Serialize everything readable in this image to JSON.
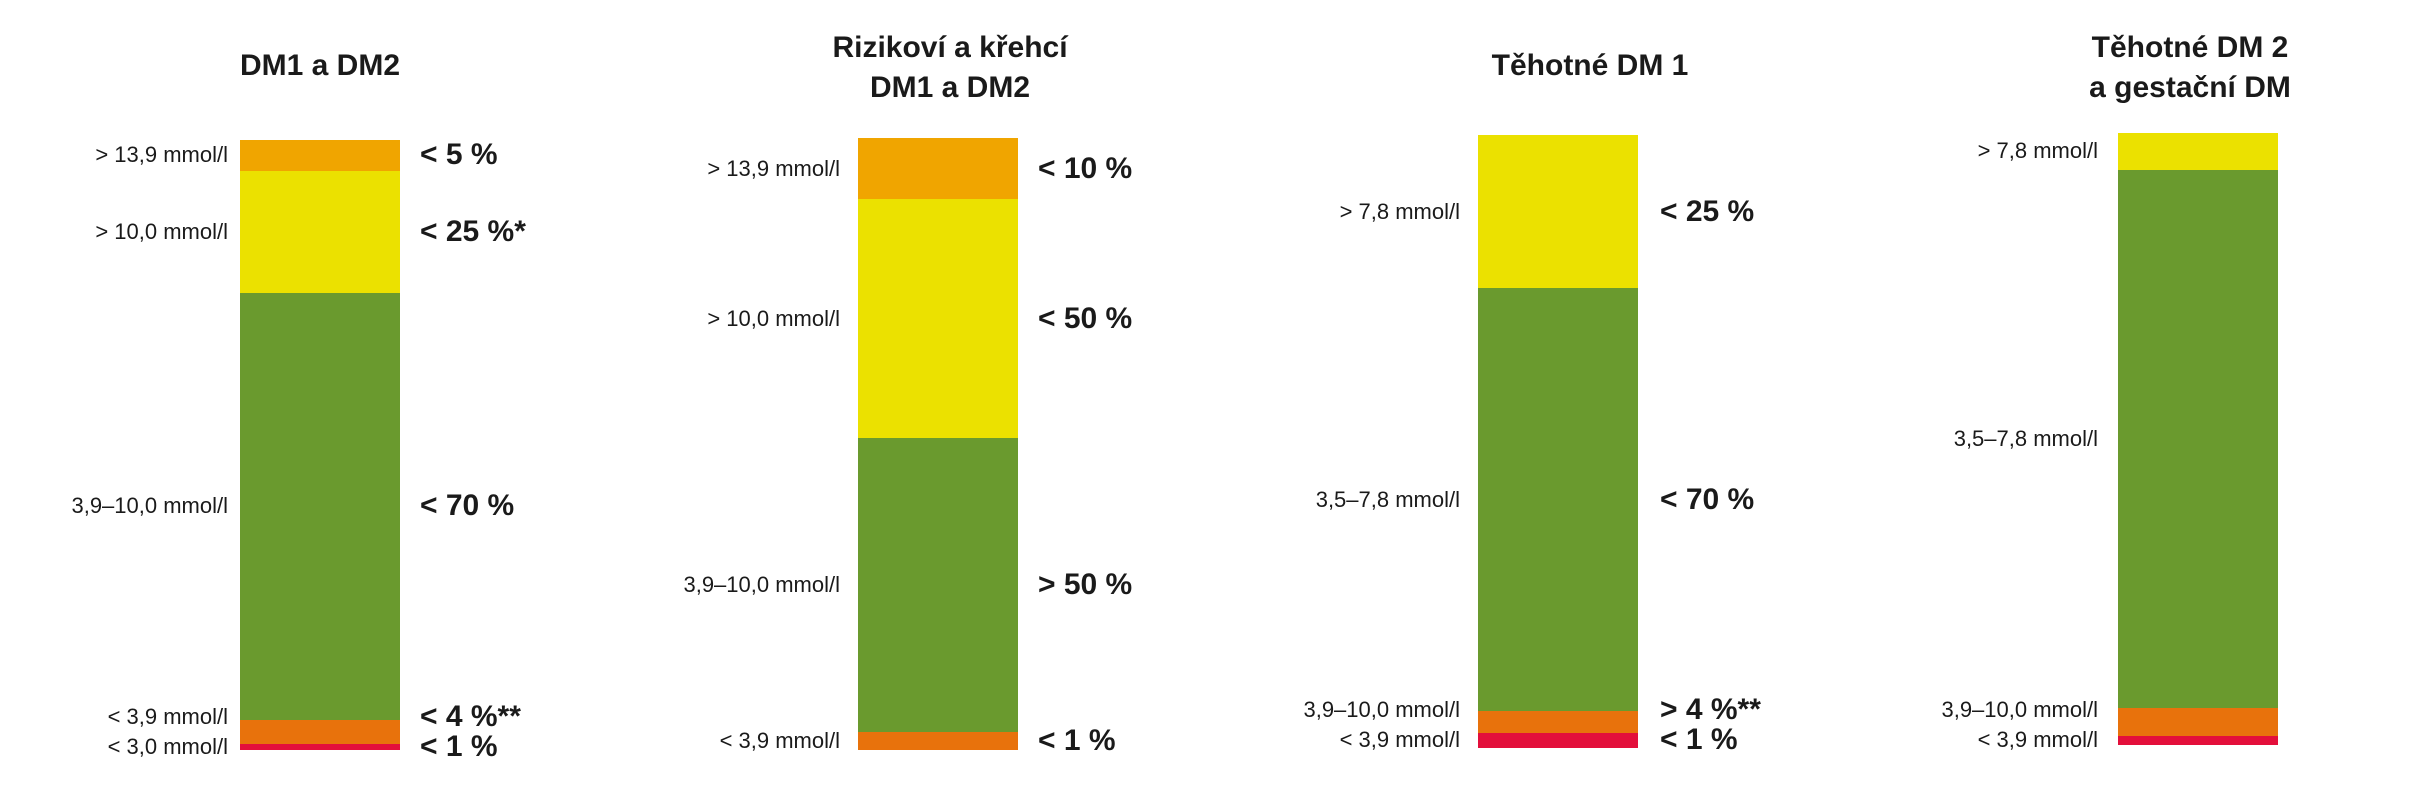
{
  "colors": {
    "very_high": "#f0a500",
    "high": "#ebe100",
    "in_range": "#6a9a2e",
    "low": "#e8720c",
    "very_low": "#e30f3b"
  },
  "chart_data": [
    {
      "type": "bar",
      "title": "DM1 a DM2",
      "segments": [
        {
          "category": "very_high",
          "range": "> 13,9 mmol/l",
          "target": "< 5 %",
          "value": 5
        },
        {
          "category": "high",
          "range": "> 10,0 mmol/l",
          "target": "< 25 %*",
          "value": 20
        },
        {
          "category": "in_range",
          "range": "3,9–10,0 mmol/l",
          "target": "< 70 %",
          "value": 70
        },
        {
          "category": "low",
          "range": "< 3,9 mmol/l",
          "target": "< 4 %**",
          "value": 4
        },
        {
          "category": "very_low",
          "range": "< 3,0 mmol/l",
          "target": "< 1 %",
          "value": 1
        }
      ]
    },
    {
      "type": "bar",
      "title": "Rizikoví a křehcí\nDM1 a DM2",
      "segments": [
        {
          "category": "very_high",
          "range": "> 13,9 mmol/l",
          "target": "< 10 %",
          "value": 10
        },
        {
          "category": "high",
          "range": "> 10,0 mmol/l",
          "target": "< 50 %",
          "value": 39
        },
        {
          "category": "in_range",
          "range": "3,9–10,0 mmol/l",
          "target": "> 50 %",
          "value": 48
        },
        {
          "category": "low",
          "range": "< 3,9 mmol/l",
          "target": "< 1 %",
          "value": 3
        }
      ]
    },
    {
      "type": "bar",
      "title": "Těhotné DM 1",
      "segments": [
        {
          "category": "high",
          "range": "> 7,8 mmol/l",
          "target": "< 25 %",
          "value": 25
        },
        {
          "category": "in_range",
          "range": "3,5–7,8 mmol/l",
          "target": "< 70 %",
          "value": 69
        },
        {
          "category": "low",
          "range": "3,9–10,0 mmol/l",
          "target": "> 4 %**",
          "value": 3.5
        },
        {
          "category": "very_low",
          "range": "< 3,9 mmol/l",
          "target": "< 1 %",
          "value": 2.5
        }
      ]
    },
    {
      "type": "bar",
      "title": "Těhotné DM 2\na gestační DM",
      "segments": [
        {
          "category": "high",
          "range": "> 7,8 mmol/l",
          "target": "",
          "value": 6
        },
        {
          "category": "in_range",
          "range": "3,5–7,8 mmol/l",
          "target": "",
          "value": 88
        },
        {
          "category": "low",
          "range": "3,9–10,0 mmol/l",
          "target": "",
          "value": 4.5
        },
        {
          "category": "very_low",
          "range": "< 3,9 mmol/l",
          "target": "",
          "value": 1.5
        }
      ]
    }
  ]
}
